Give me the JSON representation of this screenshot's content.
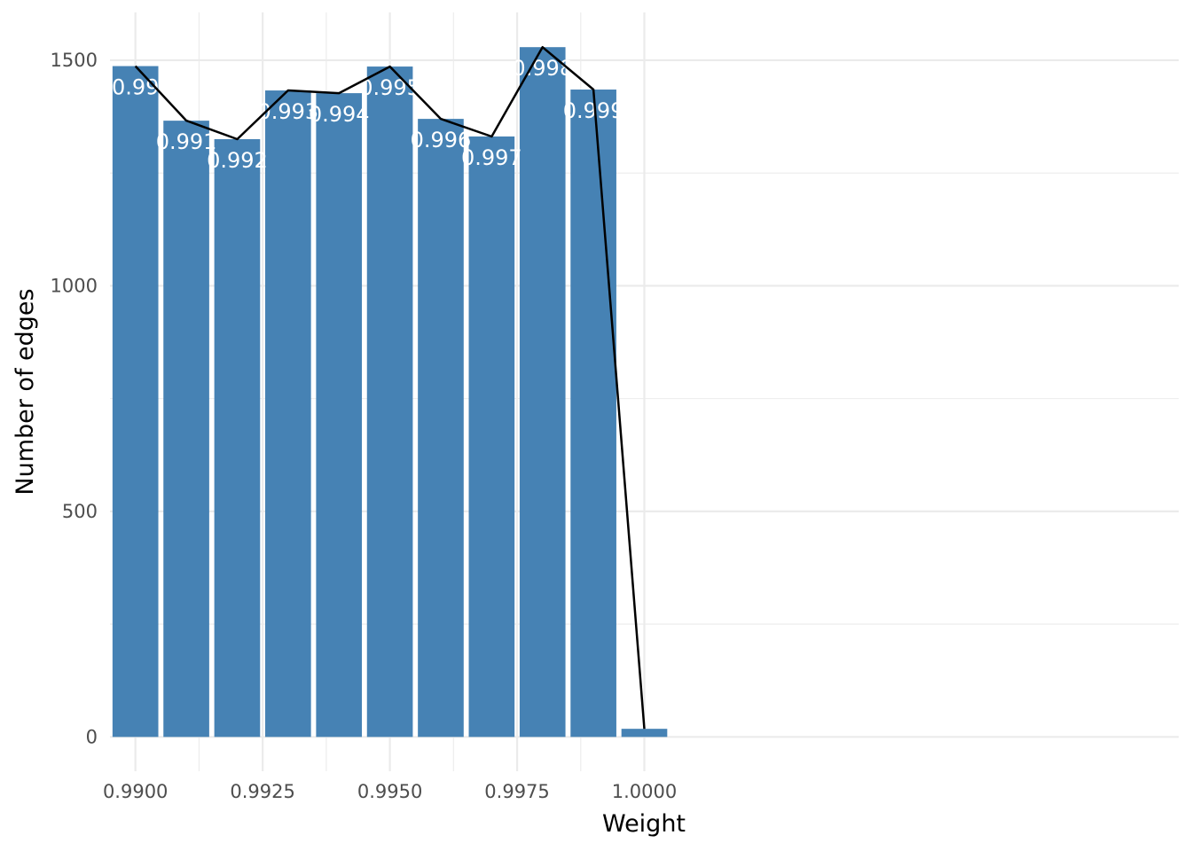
{
  "chart_data": {
    "type": "bar",
    "title": "",
    "xlabel": "Weight",
    "ylabel": "Number of edges",
    "x": [
      0.99,
      0.991,
      0.992,
      0.993,
      0.994,
      0.995,
      0.996,
      0.997,
      0.998,
      0.999,
      1.0
    ],
    "values": [
      1487,
      1366,
      1325,
      1433,
      1427,
      1486,
      1370,
      1331,
      1529,
      1435,
      18
    ],
    "bar_labels": [
      "0.99",
      "0.991",
      "0.992",
      "0.993",
      "0.994",
      "0.995",
      "0.996",
      "0.997",
      "0.998",
      "0.999",
      ""
    ],
    "line_values": [
      1487,
      1366,
      1325,
      1433,
      1427,
      1486,
      1370,
      1331,
      1529,
      1435,
      18
    ],
    "xlim": [
      0.9895,
      1.0105
    ],
    "ylim": [
      -76,
      1606
    ],
    "x_ticks": [
      0.99,
      0.9925,
      0.995,
      0.9975,
      1.0
    ],
    "x_tick_labels": [
      "0.9900",
      "0.9925",
      "0.9950",
      "0.9975",
      "1.0000"
    ],
    "y_ticks": [
      0,
      500,
      1000,
      1500
    ],
    "y_tick_labels": [
      "0",
      "500",
      "1000",
      "1500"
    ],
    "grid": true,
    "legend": "none",
    "colors": {
      "bar": "#4682b4",
      "line": "#000000",
      "grid": "#ebebeb",
      "bar_label": "#ffffff"
    }
  }
}
